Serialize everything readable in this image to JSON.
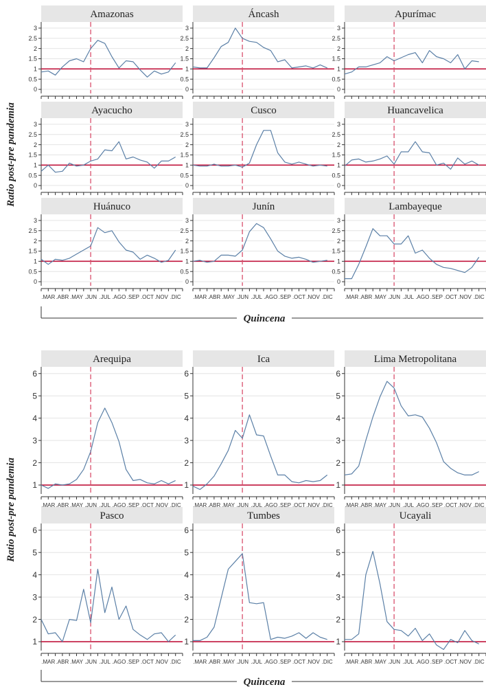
{
  "colors": {
    "line": "#5a7fa6",
    "refline": "#c0143c",
    "vline": "#d94f6b",
    "strip": "#e6e6e6",
    "grid": "#e4e4e4",
    "axis": "#333333"
  },
  "chart_data": [
    {
      "type": "line",
      "ylabel": "Ratio post-pre pandemia",
      "xlabel": "Quincena",
      "ylim": [
        -0.2,
        3.3
      ],
      "yticks": [
        0,
        0.5,
        1,
        1.5,
        2,
        2.5,
        3
      ],
      "ytick_labels": [
        "0",
        "0.5",
        "1",
        "1.5",
        "2",
        "2.5",
        "3"
      ],
      "x_tick_labels": [
        ".MAR",
        ".ABR",
        ".MAY",
        ".JUN",
        ".JUL",
        ".AGO",
        ".SEP",
        ".OCT",
        ".NOV",
        ".DIC"
      ],
      "x_ticks": [
        2,
        4,
        6,
        8,
        10,
        12,
        14,
        16,
        18,
        20
      ],
      "x_range": [
        1,
        21
      ],
      "vline_x": 8,
      "reference_y": 1,
      "grid": true,
      "panels": [
        {
          "name": "Amazonas",
          "values": [
            0.85,
            0.9,
            0.7,
            1.1,
            1.4,
            1.5,
            1.35,
            2.0,
            2.4,
            2.25,
            1.6,
            1.05,
            1.4,
            1.35,
            0.95,
            0.6,
            0.9,
            0.75,
            0.85,
            1.3
          ]
        },
        {
          "name": "Áncash",
          "values": [
            1.1,
            1.05,
            1.05,
            1.55,
            2.1,
            2.3,
            3.0,
            2.5,
            2.35,
            2.3,
            2.05,
            1.9,
            1.35,
            1.45,
            1.05,
            1.1,
            1.15,
            1.05,
            1.2,
            1.05
          ]
        },
        {
          "name": "Apurímac",
          "values": [
            0.75,
            0.85,
            1.1,
            1.1,
            1.2,
            1.3,
            1.6,
            1.4,
            1.55,
            1.7,
            1.8,
            1.3,
            1.9,
            1.6,
            1.5,
            1.3,
            1.7,
            1.0,
            1.4,
            1.35
          ]
        },
        {
          "name": "Ayacucho",
          "values": [
            0.7,
            1.0,
            0.65,
            0.7,
            1.1,
            0.95,
            1.0,
            1.2,
            1.3,
            1.75,
            1.7,
            2.15,
            1.3,
            1.4,
            1.25,
            1.15,
            0.85,
            1.2,
            1.2,
            1.4
          ]
        },
        {
          "name": "Cusco",
          "values": [
            1.0,
            0.95,
            0.95,
            1.05,
            0.95,
            0.95,
            1.0,
            0.9,
            1.1,
            2.0,
            2.7,
            2.7,
            1.6,
            1.15,
            1.05,
            1.15,
            1.05,
            0.95,
            1.0,
            0.95
          ]
        },
        {
          "name": "Huancavelica",
          "values": [
            0.95,
            1.25,
            1.3,
            1.15,
            1.2,
            1.3,
            1.45,
            1.05,
            1.65,
            1.65,
            2.15,
            1.65,
            1.6,
            1.0,
            1.1,
            0.8,
            1.35,
            1.05,
            1.2,
            1.0
          ]
        },
        {
          "name": "Huánuco",
          "values": [
            1.1,
            0.85,
            1.1,
            1.05,
            1.15,
            1.35,
            1.55,
            1.75,
            2.65,
            2.4,
            2.5,
            1.95,
            1.55,
            1.45,
            1.1,
            1.3,
            1.15,
            0.95,
            1.05,
            1.55
          ]
        },
        {
          "name": "Junín",
          "values": [
            1.0,
            1.05,
            0.95,
            1.0,
            1.3,
            1.3,
            1.25,
            1.55,
            2.45,
            2.85,
            2.65,
            2.1,
            1.5,
            1.25,
            1.15,
            1.2,
            1.1,
            0.95,
            1.0,
            1.05
          ]
        },
        {
          "name": "Lambayeque",
          "values": [
            0.15,
            0.15,
            0.85,
            1.7,
            2.6,
            2.25,
            2.25,
            1.85,
            1.85,
            2.25,
            1.4,
            1.55,
            1.15,
            0.85,
            0.7,
            0.65,
            0.55,
            0.45,
            0.7,
            1.2
          ]
        }
      ]
    },
    {
      "type": "line",
      "ylabel": "Ratio post-pre pandemia",
      "xlabel": "Quincena",
      "ylim": [
        0.6,
        6.3
      ],
      "yticks": [
        1,
        2,
        3,
        4,
        5,
        6
      ],
      "ytick_labels": [
        "1",
        "2",
        "3",
        "4",
        "5",
        "6"
      ],
      "x_tick_labels": [
        ".MAR",
        ".ABR",
        ".MAY",
        ".JUN",
        ".JUL",
        ".AGO",
        ".SEP",
        ".OCT",
        ".NOV",
        ".DIC"
      ],
      "x_ticks": [
        2,
        4,
        6,
        8,
        10,
        12,
        14,
        16,
        18,
        20
      ],
      "x_range": [
        1,
        21
      ],
      "vline_x": 8,
      "reference_y": 1,
      "grid": true,
      "panels": [
        {
          "name": "Arequipa",
          "values": [
            1.0,
            0.85,
            1.05,
            1.0,
            1.05,
            1.25,
            1.7,
            2.5,
            3.8,
            4.45,
            3.8,
            2.95,
            1.7,
            1.2,
            1.25,
            1.1,
            1.05,
            1.2,
            1.05,
            1.2
          ]
        },
        {
          "name": "Ica",
          "values": [
            0.95,
            0.8,
            1.05,
            1.4,
            1.95,
            2.55,
            3.45,
            3.1,
            4.15,
            3.25,
            3.2,
            2.3,
            1.45,
            1.45,
            1.15,
            1.1,
            1.2,
            1.15,
            1.2,
            1.45
          ]
        },
        {
          "name": "Lima Metropolitana",
          "values": [
            1.45,
            1.5,
            1.85,
            3.0,
            4.05,
            4.95,
            5.65,
            5.35,
            4.55,
            4.1,
            4.15,
            4.05,
            3.55,
            2.9,
            2.05,
            1.75,
            1.55,
            1.45,
            1.45,
            1.6
          ]
        },
        {
          "name": "Pasco",
          "values": [
            2.0,
            1.35,
            1.4,
            1.0,
            2.0,
            1.95,
            3.35,
            1.85,
            4.25,
            2.3,
            3.45,
            2.0,
            2.6,
            1.55,
            1.3,
            1.1,
            1.35,
            1.4,
            1.0,
            1.3
          ]
        },
        {
          "name": "Tumbes",
          "values": [
            1.05,
            1.05,
            1.2,
            1.65,
            2.95,
            4.25,
            4.6,
            4.95,
            2.75,
            2.7,
            2.75,
            1.1,
            1.2,
            1.15,
            1.25,
            1.4,
            1.15,
            1.4,
            1.2,
            1.1
          ]
        },
        {
          "name": "Ucayali",
          "values": [
            1.1,
            1.1,
            1.35,
            4.0,
            5.05,
            3.6,
            1.9,
            1.55,
            1.5,
            1.25,
            1.6,
            1.05,
            1.35,
            0.85,
            0.65,
            1.1,
            0.95,
            1.5,
            1.05,
            0.9
          ]
        }
      ]
    }
  ]
}
